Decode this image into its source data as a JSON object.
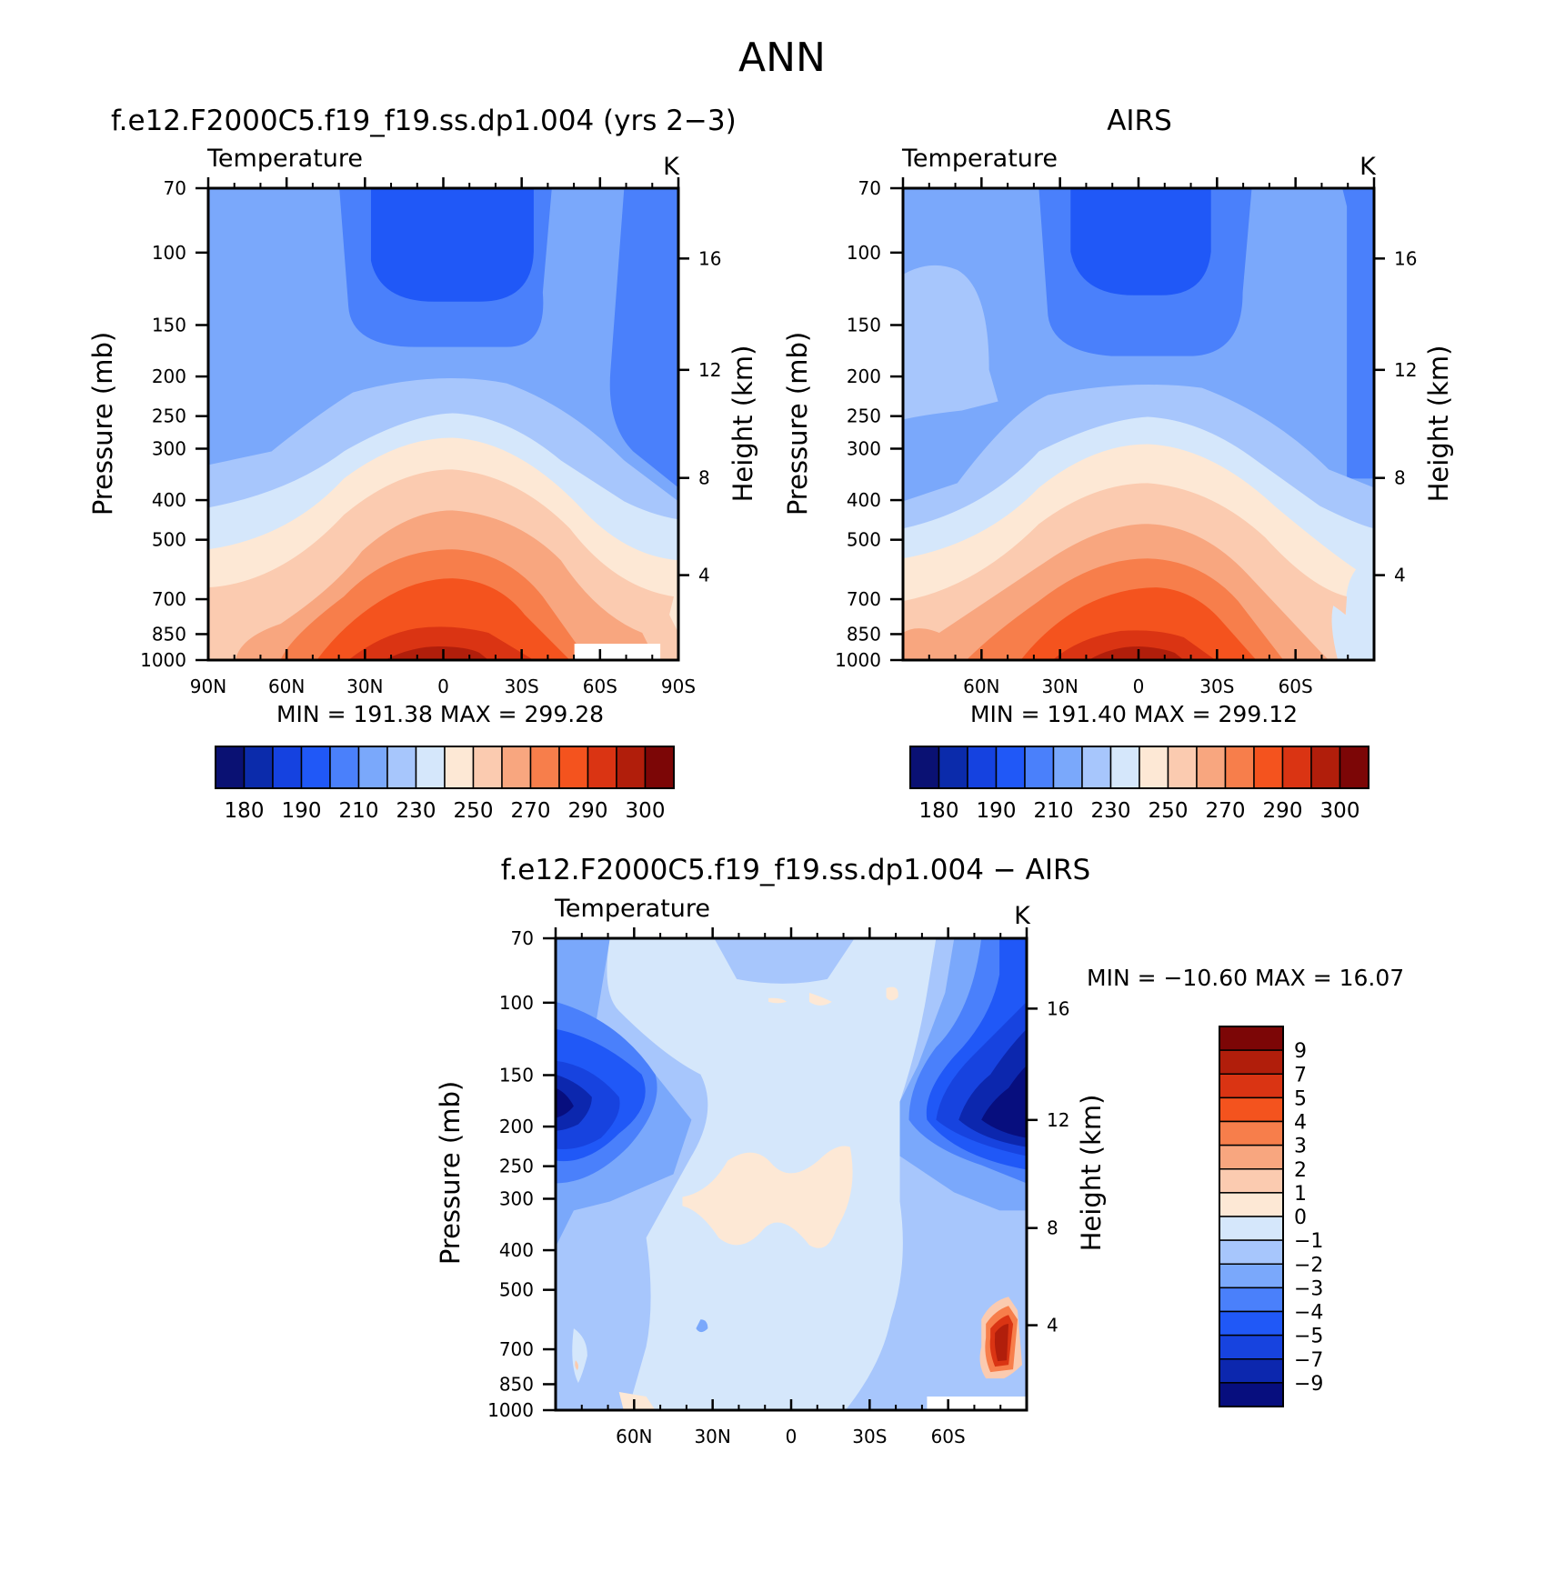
{
  "page_title": "ANN",
  "colors": {
    "temp_levels": [
      "#0a1173",
      "#0b2bab",
      "#1542e0",
      "#2058f7",
      "#4a80fb",
      "#7aa8fb",
      "#a7c6fc",
      "#d5e7fb",
      "#fde8d5",
      "#fbcbb0",
      "#f8a67f",
      "#f77e4b",
      "#f4531e",
      "#da3413",
      "#b11e0b",
      "#7c0606"
    ],
    "diff_levels": [
      "#070e7e",
      "#0c27ae",
      "#1743df",
      "#2058f7",
      "#4a80fb",
      "#7aa8fb",
      "#a7c6fc",
      "#d5e7fb",
      "#fde8d5",
      "#fbcbb0",
      "#f8a67f",
      "#f77e4b",
      "#f4531e",
      "#da3413",
      "#b11e0b",
      "#7c0606"
    ]
  },
  "chart_data": [
    {
      "id": "model",
      "type": "heatmap",
      "title": "f.e12.F2000C5.f19_f19.ss.dp1.004 (yrs 2−3)",
      "subtitle": "Temperature",
      "units": "K",
      "ylabel": "Pressure (mb)",
      "ylabel_right": "Height (km)",
      "x_ticks": [
        "90N",
        "60N",
        "30N",
        "0",
        "30S",
        "60S",
        "90S"
      ],
      "y_ticks": [
        "70",
        "100",
        "150",
        "200",
        "250",
        "300",
        "400",
        "500",
        "700",
        "850",
        "1000"
      ],
      "y_right_ticks": [
        "16",
        "12",
        "8",
        "4"
      ],
      "stats": "MIN = 191.38 MAX = 299.28",
      "levels": [
        "180",
        "190",
        "210",
        "230",
        "250",
        "270",
        "290",
        "300"
      ],
      "min": 191.38,
      "max": 299.28,
      "xlim": [
        90,
        -90
      ],
      "ylim": [
        1000,
        70
      ]
    },
    {
      "id": "obs",
      "type": "heatmap",
      "title": "AIRS",
      "subtitle": "Temperature",
      "units": "K",
      "ylabel": "Pressure (mb)",
      "ylabel_right": "Height (km)",
      "x_ticks": [
        "60N",
        "30N",
        "0",
        "30S",
        "60S"
      ],
      "y_ticks": [
        "70",
        "100",
        "150",
        "200",
        "250",
        "300",
        "400",
        "500",
        "700",
        "850",
        "1000"
      ],
      "y_right_ticks": [
        "16",
        "12",
        "8",
        "4"
      ],
      "stats": "MIN = 191.40 MAX = 299.12",
      "levels": [
        "180",
        "190",
        "210",
        "230",
        "250",
        "270",
        "290",
        "300"
      ],
      "min": 191.4,
      "max": 299.12,
      "xlim": [
        90,
        -90
      ],
      "ylim": [
        1000,
        70
      ]
    },
    {
      "id": "diff",
      "type": "heatmap",
      "title": "f.e12.F2000C5.f19_f19.ss.dp1.004 − AIRS",
      "subtitle": "Temperature",
      "units": "K",
      "ylabel": "Pressure (mb)",
      "ylabel_right": "Height (km)",
      "x_ticks": [
        "60N",
        "30N",
        "0",
        "30S",
        "60S"
      ],
      "y_ticks": [
        "70",
        "100",
        "150",
        "200",
        "250",
        "300",
        "400",
        "500",
        "700",
        "850",
        "1000"
      ],
      "y_right_ticks": [
        "16",
        "12",
        "8",
        "4"
      ],
      "stats": "MIN = −10.60 MAX = 16.07",
      "levels": [
        "9",
        "7",
        "5",
        "4",
        "3",
        "2",
        "1",
        "0",
        "−1",
        "−2",
        "−3",
        "−4",
        "−5",
        "−7",
        "−9"
      ],
      "min": -10.6,
      "max": 16.07,
      "xlim": [
        90,
        -90
      ],
      "ylim": [
        1000,
        70
      ]
    }
  ]
}
